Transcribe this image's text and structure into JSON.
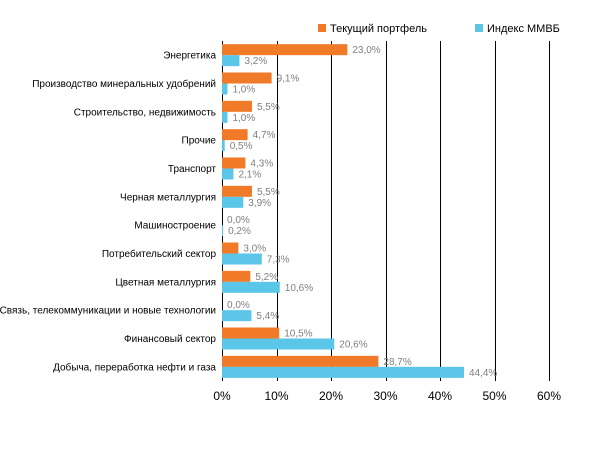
{
  "chart_data": {
    "type": "bar",
    "orientation": "horizontal",
    "categories": [
      "Энергетика",
      "Производство минеральных удобрений",
      "Строительство, недвижимость",
      "Прочие",
      "Транспорт",
      "Черная металлургия",
      "Машиностроение",
      "Потребительский сектор",
      "Цветная металлургия",
      "Связь, телекоммуникации и новые технологии",
      "Финансовый сектор",
      "Добыча, переработка нефти и газа"
    ],
    "series": [
      {
        "name": "Текущий  портфель",
        "color": "#f07a28",
        "values": [
          23.0,
          9.1,
          5.5,
          4.7,
          4.3,
          5.5,
          0.0,
          3.0,
          5.2,
          0.0,
          10.5,
          28.7
        ],
        "labels": [
          "23,0%",
          "9,1%",
          "5,5%",
          "4,7%",
          "4,3%",
          "5,5%",
          "0,0%",
          "3,0%",
          "5,2%",
          "0,0%",
          "10,5%",
          "28,7%"
        ]
      },
      {
        "name": "Индекс  ММВБ",
        "color": "#5bc6e8",
        "values": [
          3.2,
          1.0,
          1.0,
          0.5,
          2.1,
          3.9,
          0.2,
          7.3,
          10.6,
          5.4,
          20.6,
          44.4
        ],
        "labels": [
          "3,2%",
          "1,0%",
          "1,0%",
          "0,5%",
          "2,1%",
          "3,9%",
          "0,2%",
          "7,3%",
          "10,6%",
          "5,4%",
          "20,6%",
          "44,4%"
        ]
      }
    ],
    "xlim": [
      0,
      60
    ],
    "xticks": [
      0,
      10,
      20,
      30,
      40,
      50,
      60
    ],
    "xtick_labels": [
      "0%",
      "10%",
      "20%",
      "30%",
      "40%",
      "50%",
      "60%"
    ],
    "grid": "vertical",
    "legend": "top-right",
    "gridline_color": "#000000"
  }
}
